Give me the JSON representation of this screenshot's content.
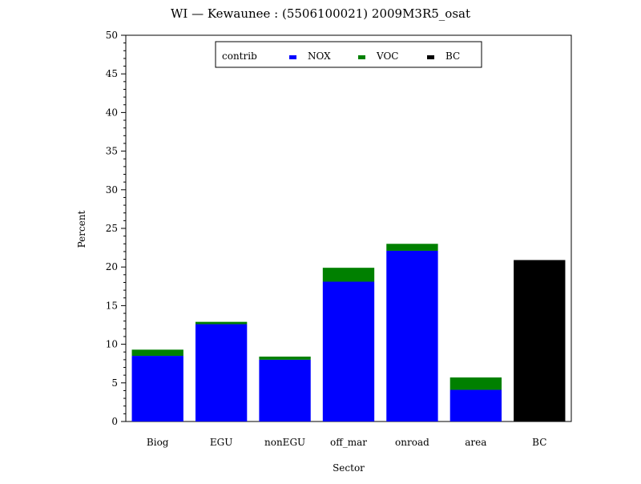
{
  "chart_data": {
    "type": "bar",
    "stacked": true,
    "title": "WI — Kewaunee : (5506100021) 2009M3R5_osat",
    "xlabel": "Sector",
    "ylabel": "Percent",
    "ylim": [
      0,
      50
    ],
    "yticks": [
      "0",
      "5",
      "10",
      "15",
      "20",
      "25",
      "30",
      "35",
      "40",
      "45",
      "50"
    ],
    "categories": [
      "Biog",
      "EGU",
      "nonEGU",
      "off_mar",
      "onroad",
      "area",
      "BC"
    ],
    "legend": {
      "title": "contrib",
      "placement": "top-center"
    },
    "series": [
      {
        "name": "NOX",
        "color": "#0000ff",
        "values": [
          8.5,
          12.6,
          8.0,
          18.1,
          22.1,
          4.1,
          0
        ]
      },
      {
        "name": "VOC",
        "color": "#008000",
        "values": [
          0.8,
          0.3,
          0.4,
          1.8,
          0.9,
          1.6,
          0
        ]
      },
      {
        "name": "BC",
        "color": "#000000",
        "values": [
          0,
          0,
          0,
          0,
          0,
          0,
          20.9
        ]
      }
    ],
    "grid": false
  }
}
